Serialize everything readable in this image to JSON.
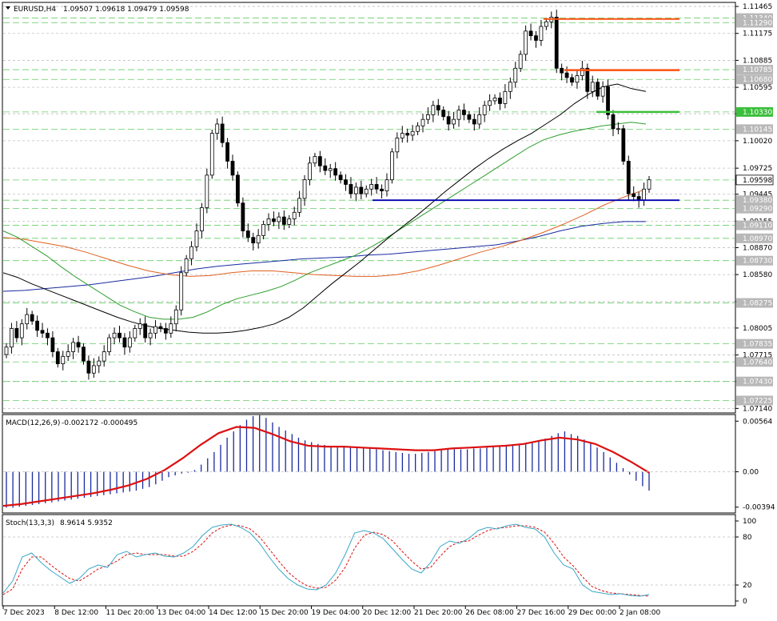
{
  "header": {
    "symbol": "EURUSD,H4",
    "quote": "1.09507 1.09618 1.09479 1.09598"
  },
  "chart_data": [
    {
      "type": "candlestick",
      "title": "EURUSD,H4",
      "ylim": [
        1.071,
        1.115
      ],
      "ticks": [
        "1.11465",
        "1.11175",
        "1.10885",
        "1.10595",
        "1.10310",
        "1.10020",
        "1.09725",
        "1.09445",
        "1.09155",
        "1.08870",
        "1.08580",
        "1.08290",
        "1.08005",
        "1.07715",
        "1.07430",
        "1.07140"
      ],
      "tick_values": [
        1.11465,
        1.11175,
        1.10885,
        1.10595,
        1.1031,
        1.1002,
        1.09725,
        1.09445,
        1.09155,
        1.0887,
        1.0858,
        1.0829,
        1.08005,
        1.07715,
        1.0743,
        1.0714
      ],
      "x_labels": [
        "7 Dec 2023",
        "8 Dec 12:00",
        "11 Dec 20:00",
        "13 Dec 04:00",
        "14 Dec 12:00",
        "15 Dec 20:00",
        "19 Dec 04:00",
        "20 Dec 12:00",
        "21 Dec 20:00",
        "26 Dec 08:00",
        "27 Dec 16:00",
        "29 Dec 00:00",
        "2 Jan 08:00"
      ],
      "levels": [
        {
          "label": "1.11340",
          "value": 1.1134,
          "color": "#c0c0c0"
        },
        {
          "label": "1.11290",
          "value": 1.1129,
          "color": "#c0c0c0"
        },
        {
          "label": "1.10785",
          "value": 1.10785,
          "color": "#c0c0c0"
        },
        {
          "label": "1.10680",
          "value": 1.1068,
          "color": "#c0c0c0"
        },
        {
          "label": "1.10330",
          "value": 1.1033,
          "color": "#3cbf3c"
        },
        {
          "label": "1.10145",
          "value": 1.10145,
          "color": "#c0c0c0"
        },
        {
          "label": "1.09598",
          "value": 1.09598,
          "color": "#ffffff"
        },
        {
          "label": "1.09380",
          "value": 1.0938,
          "color": "#c0c0c0"
        },
        {
          "label": "1.09290",
          "value": 1.0929,
          "color": "#c0c0c0"
        },
        {
          "label": "1.09110",
          "value": 1.0911,
          "color": "#c0c0c0"
        },
        {
          "label": "1.08970",
          "value": 1.0897,
          "color": "#c0c0c0"
        },
        {
          "label": "1.08730",
          "value": 1.0873,
          "color": "#c0c0c0"
        },
        {
          "label": "1.08275",
          "value": 1.08275,
          "color": "#c0c0c0"
        },
        {
          "label": "1.07835",
          "value": 1.07835,
          "color": "#c0c0c0"
        },
        {
          "label": "1.07640",
          "value": 1.0764,
          "color": "#c0c0c0"
        },
        {
          "label": "1.07430",
          "value": 1.0743,
          "color": "#c0c0c0"
        },
        {
          "label": "1.07225",
          "value": 1.07225,
          "color": "#c0c0c0"
        }
      ],
      "close": [
        1.078,
        1.08,
        1.079,
        1.0805,
        1.0815,
        1.0808,
        1.0798,
        1.0795,
        1.079,
        1.0775,
        1.0762,
        1.077,
        1.0775,
        1.0785,
        1.078,
        1.0765,
        1.0752,
        1.076,
        1.0765,
        1.0775,
        1.079,
        1.0795,
        1.079,
        1.078,
        1.079,
        1.08,
        1.0805,
        1.079,
        1.0795,
        1.0802,
        1.08,
        1.0795,
        1.0805,
        1.082,
        1.086,
        1.0875,
        1.0888,
        1.0905,
        1.093,
        1.0965,
        1.101,
        1.102,
        1.1,
        1.098,
        1.0965,
        1.0935,
        1.0905,
        1.0898,
        1.0892,
        1.09,
        1.0912,
        1.0918,
        1.0915,
        1.092,
        1.0912,
        1.0918,
        1.0925,
        1.094,
        1.096,
        1.0978,
        1.0985,
        1.0975,
        1.097,
        1.0972,
        1.0965,
        1.096,
        1.0955,
        1.0945,
        1.0952,
        1.0945,
        1.095,
        1.0955,
        1.095,
        1.0948,
        1.096,
        1.099,
        1.1005,
        1.101,
        1.1008,
        1.1012,
        1.1018,
        1.1025,
        1.103,
        1.104,
        1.1035,
        1.1028,
        1.102,
        1.1025,
        1.1035,
        1.103,
        1.1025,
        1.102,
        1.103,
        1.104,
        1.1045,
        1.1048,
        1.1042,
        1.1055,
        1.1065,
        1.108,
        1.1095,
        1.112,
        1.1115,
        1.111,
        1.1125,
        1.113,
        1.1135,
        1.108,
        1.1075,
        1.107,
        1.1065,
        1.1072,
        1.108,
        1.1055,
        1.1065,
        1.105,
        1.106,
        1.103,
        1.1015,
        1.1015,
        1.098,
        1.0945,
        1.0942,
        1.0938,
        1.095,
        1.096
      ],
      "sma_black": [
        1.086,
        1.0855,
        1.0848,
        1.0842,
        1.0836,
        1.083,
        1.0824,
        1.0818,
        1.0812,
        1.0807,
        1.0803,
        1.08,
        1.0798,
        1.0796,
        1.0795,
        1.0795,
        1.0796,
        1.0798,
        1.0801,
        1.0805,
        1.0812,
        1.0822,
        1.0835,
        1.0848,
        1.086,
        1.0872,
        1.0885,
        1.0898,
        1.091,
        1.0922,
        1.0935,
        1.0948,
        1.096,
        1.0972,
        1.0983,
        1.0993,
        1.1002,
        1.101,
        1.102,
        1.103,
        1.1042,
        1.1052,
        1.106,
        1.1063,
        1.1058,
        1.1055
      ],
      "sma_green": [
        1.0905,
        1.0898,
        1.0888,
        1.0878,
        1.0866,
        1.0855,
        1.0845,
        1.0835,
        1.0825,
        1.0818,
        1.0812,
        1.081,
        1.081,
        1.0812,
        1.0818,
        1.0826,
        1.0832,
        1.0836,
        1.084,
        1.0845,
        1.0852,
        1.086,
        1.0866,
        1.0872,
        1.0878,
        1.0886,
        1.0895,
        1.0905,
        1.0915,
        1.0925,
        1.0935,
        1.0945,
        1.0955,
        1.0965,
        1.0975,
        1.0985,
        1.0995,
        1.1003,
        1.1008,
        1.1012,
        1.1015,
        1.1018,
        1.102,
        1.1022,
        1.102
      ],
      "sma_orange": [
        1.0898,
        1.0896,
        1.0892,
        1.0888,
        1.0882,
        1.0875,
        1.0868,
        1.0862,
        1.0858,
        1.0856,
        1.0857,
        1.086,
        1.0862,
        1.0862,
        1.086,
        1.0858,
        1.0857,
        1.0856,
        1.0856,
        1.0858,
        1.0862,
        1.0868,
        1.0875,
        1.0882,
        1.0888,
        1.0895,
        1.0903,
        1.0912,
        1.0922,
        1.0933,
        1.0942,
        1.095
      ],
      "sma_blue": [
        1.084,
        1.0841,
        1.0843,
        1.0845,
        1.0847,
        1.085,
        1.0853,
        1.0856,
        1.086,
        1.0864,
        1.0867,
        1.0869,
        1.0871,
        1.0873,
        1.0875,
        1.0876,
        1.0877,
        1.0879,
        1.088,
        1.0882,
        1.0884,
        1.0886,
        1.0888,
        1.089,
        1.0894,
        1.0899,
        1.0905,
        1.091,
        1.0913,
        1.0915,
        1.0915
      ]
    },
    {
      "type": "bar",
      "title": "MACD(12,26,9)",
      "values_label": "-0.002172 -0.000495",
      "ticks": [
        "0.00564",
        "0.00",
        "-0.00394"
      ],
      "tick_values": [
        0.00564,
        0.0,
        -0.00394
      ],
      "ylim": [
        -0.0045,
        0.0062
      ],
      "histogram": [
        -0.004,
        -0.004,
        -0.0039,
        -0.0038,
        -0.0037,
        -0.0036,
        -0.0035,
        -0.0034,
        -0.0033,
        -0.0032,
        -0.0031,
        -0.003,
        -0.0029,
        -0.0028,
        -0.0027,
        -0.0026,
        -0.0025,
        -0.0024,
        -0.0023,
        -0.0022,
        -0.0021,
        -0.0019,
        -0.0017,
        -0.0014,
        -0.001,
        -0.0006,
        -0.0004,
        -0.0002,
        -0.0001,
        0.0002,
        0.0008,
        0.0015,
        0.0022,
        0.003,
        0.0038,
        0.0045,
        0.0052,
        0.0058,
        0.0062,
        0.0063,
        0.006,
        0.0055,
        0.005,
        0.0046,
        0.0042,
        0.0038,
        0.0035,
        0.0033,
        0.0031,
        0.003,
        0.0029,
        0.0029,
        0.0029,
        0.0028,
        0.0028,
        0.0027,
        0.0026,
        0.0025,
        0.0024,
        0.0023,
        0.0022,
        0.0021,
        0.002,
        0.002,
        0.0021,
        0.0022,
        0.0023,
        0.0024,
        0.0025,
        0.0025,
        0.0025,
        0.0025,
        0.0026,
        0.0026,
        0.0027,
        0.0028,
        0.0029,
        0.003,
        0.003,
        0.0031,
        0.0032,
        0.0033,
        0.0035,
        0.0037,
        0.004,
        0.0043,
        0.0045,
        0.0042,
        0.004,
        0.0036,
        0.0032,
        0.0027,
        0.0022,
        0.0016,
        0.001,
        0.0004,
        -0.0003,
        -0.001,
        -0.0016,
        -0.0021
      ],
      "signal": [
        -0.0038,
        -0.0036,
        -0.0033,
        -0.003,
        -0.0027,
        -0.0024,
        -0.002,
        -0.0015,
        -0.0008,
        0.0002,
        0.0015,
        0.003,
        0.0043,
        0.005,
        0.0049,
        0.0042,
        0.0034,
        0.0029,
        0.0028,
        0.0028,
        0.0027,
        0.0026,
        0.0025,
        0.0024,
        0.0024,
        0.0026,
        0.0027,
        0.0028,
        0.0029,
        0.0031,
        0.0035,
        0.0038,
        0.0036,
        0.0031,
        0.0022,
        0.0011,
        -0.0001
      ]
    },
    {
      "type": "line",
      "title": "Stoch(13,3,3)",
      "values_label": "8.9614 5.9352",
      "ticks": [
        "100",
        "80",
        "20",
        "0"
      ],
      "tick_values": [
        100,
        80,
        20,
        0
      ],
      "ylim": [
        -5,
        105
      ],
      "main": [
        10,
        25,
        55,
        60,
        48,
        38,
        30,
        22,
        28,
        40,
        45,
        42,
        58,
        62,
        55,
        58,
        60,
        56,
        55,
        60,
        68,
        82,
        92,
        95,
        96,
        92,
        85,
        72,
        55,
        40,
        28,
        20,
        15,
        14,
        20,
        35,
        58,
        85,
        88,
        85,
        78,
        65,
        52,
        40,
        35,
        48,
        68,
        75,
        72,
        78,
        88,
        92,
        90,
        94,
        96,
        92,
        90,
        80,
        60,
        45,
        40,
        20,
        12,
        10,
        8,
        9,
        7,
        6,
        8
      ],
      "signal": [
        8,
        15,
        40,
        55,
        55,
        45,
        36,
        28,
        25,
        32,
        40,
        44,
        50,
        58,
        60,
        58,
        58,
        58,
        56,
        56,
        62,
        72,
        85,
        92,
        95,
        94,
        90,
        80,
        65,
        50,
        36,
        26,
        19,
        16,
        17,
        26,
        42,
        66,
        82,
        86,
        83,
        75,
        62,
        50,
        40,
        42,
        56,
        68,
        74,
        75,
        82,
        88,
        91,
        92,
        94,
        94,
        92,
        86,
        72,
        55,
        44,
        30,
        18,
        13,
        10,
        9,
        8,
        7,
        6
      ]
    }
  ],
  "annotations": {
    "resistance_1": 1.1133,
    "resistance_2": 1.1078,
    "support_green": 1.1033,
    "support_blue": 1.0938
  },
  "colors": {
    "bull": "#ffffff",
    "bear": "#000000",
    "sma_black": "#000000",
    "sma_green": "#2e9e2e",
    "sma_orange": "#e06020",
    "sma_blue": "#1a2aa0",
    "resistance": "#ff5010",
    "support_green": "#3cbf3c",
    "support_blue": "#0000b0",
    "macd_hist": "#1a2aa0",
    "macd_signal": "#dd1010",
    "stoch_main": "#3aa7c8",
    "stoch_signal": "#dd1010",
    "grid": "#c0c0c0"
  }
}
